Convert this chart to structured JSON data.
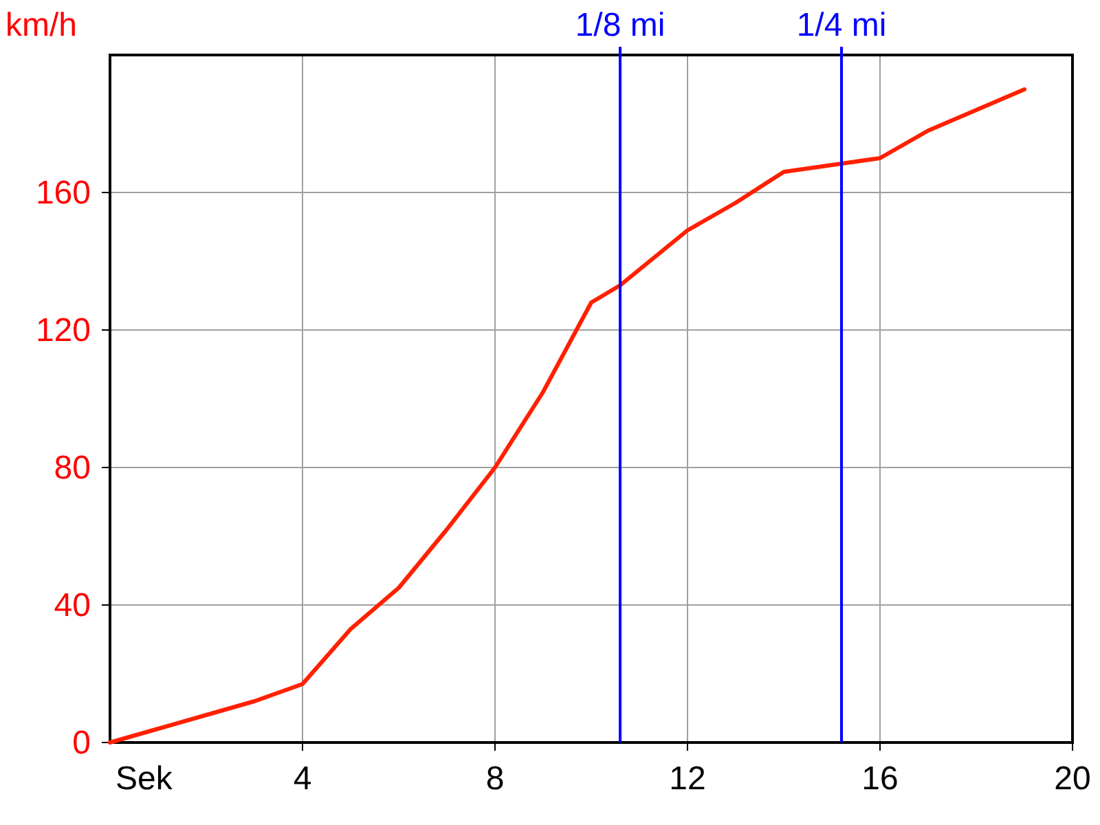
{
  "chart_data": {
    "type": "line",
    "xlabel": "Sek",
    "ylabel": "km/h",
    "x": [
      0,
      1,
      2,
      3,
      4,
      5,
      6,
      7,
      8,
      9,
      10,
      10.6,
      12,
      13,
      14,
      15,
      16,
      17,
      18,
      19
    ],
    "series": [
      {
        "color": "#ff2000",
        "values": [
          0,
          4,
          8,
          12,
          17,
          33,
          45,
          62,
          80,
          102,
          128,
          133,
          149,
          157,
          166,
          168,
          170,
          178,
          184,
          190
        ]
      }
    ],
    "xlim": [
      0,
      20
    ],
    "xticks": [
      4,
      8,
      12,
      16,
      20
    ],
    "ylim": [
      0,
      200
    ],
    "yticks": [
      0,
      40,
      80,
      120,
      160
    ],
    "grid": true,
    "marker": "none",
    "line_style": "solid",
    "ref_lines": [
      {
        "axis": "x",
        "value": 10.6,
        "label": "1/8 mi",
        "color": "#0000ff"
      },
      {
        "axis": "x",
        "value": 15.2,
        "label": "1/4 mi",
        "color": "#0000ff"
      }
    ]
  }
}
